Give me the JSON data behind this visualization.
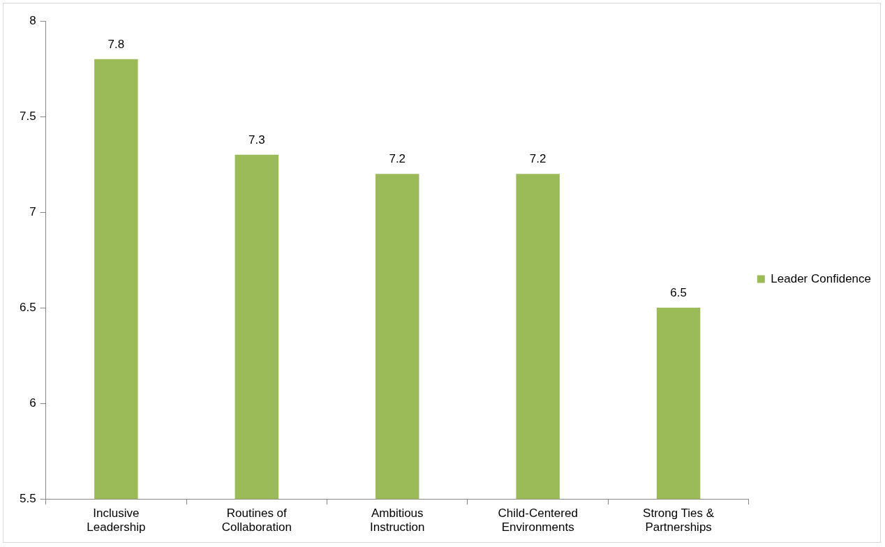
{
  "chart_data": {
    "type": "bar",
    "categories": [
      "Inclusive Leadership",
      "Routines of Collaboration",
      "Ambitious Instruction",
      "Child-Centered Environments",
      "Strong Ties & Partnerships"
    ],
    "series": [
      {
        "name": "Leader Confidence",
        "color": "#9bbb59",
        "values": [
          7.8,
          7.3,
          7.2,
          7.2,
          6.5
        ]
      }
    ],
    "ylim": [
      5.5,
      8
    ],
    "yticks": [
      5.5,
      6,
      6.5,
      7,
      7.5,
      8
    ],
    "grid": false,
    "legend": "right",
    "data_labels": true
  }
}
